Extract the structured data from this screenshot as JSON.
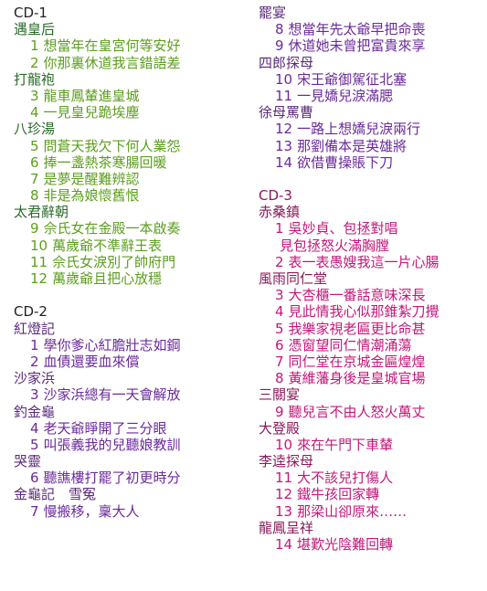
{
  "cd1": {
    "title": "CD-1",
    "sections": [
      {
        "name": "遇皇后",
        "tracks": [
          {
            "no": "1",
            "text": "想當年在皇宮何等安好"
          },
          {
            "no": "2",
            "text": "你那裏休道我言錯語差"
          }
        ]
      },
      {
        "name": "打龍袍",
        "tracks": [
          {
            "no": "3",
            "text": "龍車鳳輦進皇城"
          },
          {
            "no": "4",
            "text": "一見皇兒跪埃塵"
          }
        ]
      },
      {
        "name": "八珍湯",
        "tracks": [
          {
            "no": "5",
            "text": "問蒼天我欠下何人業怨"
          },
          {
            "no": "6",
            "text": "捧一盞熱茶寒腸回暖"
          },
          {
            "no": "7",
            "text": "是夢是醒難辨認"
          },
          {
            "no": "8",
            "text": "非是為娘懷舊恨"
          }
        ]
      },
      {
        "name": "太君辭朝",
        "tracks": [
          {
            "no": "9",
            "text": "佘氏女在金殿一本啟奏"
          },
          {
            "no": "10",
            "text": "萬歲爺不準辭王表"
          },
          {
            "no": "11",
            "text": "佘氏女淚別了帥府門"
          },
          {
            "no": "12",
            "text": "萬歲爺且把心放穩"
          }
        ]
      }
    ]
  },
  "cd2": {
    "title": "CD-2",
    "sections": [
      {
        "name": "紅燈記",
        "tracks": [
          {
            "no": "1",
            "text": "學你爹心紅膽壯志如鋼"
          },
          {
            "no": "2",
            "text": "血債還要血來償"
          }
        ]
      },
      {
        "name": "沙家浜",
        "tracks": [
          {
            "no": "3",
            "text": "沙家浜總有一天會解放"
          }
        ]
      },
      {
        "name": "釣金龜",
        "tracks": [
          {
            "no": "4",
            "text": "老天爺睜開了三分眼"
          },
          {
            "no": "5",
            "text": "叫張義我的兒聽娘教訓"
          }
        ]
      },
      {
        "name": "哭靈",
        "tracks": [
          {
            "no": "6",
            "text": "聽譙樓打罷了初更時分"
          }
        ]
      },
      {
        "name": "金龜記　雪冤",
        "tracks": [
          {
            "no": "7",
            "text": "慢搬移，稟大人"
          }
        ]
      },
      {
        "name": "罷宴",
        "tracks": [
          {
            "no": "8",
            "text": "想當年先太爺早把命喪"
          },
          {
            "no": "9",
            "text": "休道她未曾把富貴來享"
          }
        ]
      },
      {
        "name": "四郎探母",
        "tracks": [
          {
            "no": "10",
            "text": "宋王爺御駕征北塞"
          },
          {
            "no": "11",
            "text": "一見嬌兒淚滿腮"
          }
        ]
      },
      {
        "name": "徐母罵曹",
        "tracks": [
          {
            "no": "12",
            "text": "一路上想嬌兒淚兩行"
          },
          {
            "no": "13",
            "text": "那劉備本是英雄將"
          },
          {
            "no": "14",
            "text": "欲借曹操賬下刀"
          }
        ]
      }
    ]
  },
  "cd3": {
    "title": "CD-3",
    "sections": [
      {
        "name": "赤桑鎮",
        "tracks": [
          {
            "no": "1",
            "text": "吳妙貞、包拯對唱",
            "cont": "見包拯怒火滿胸膛"
          },
          {
            "no": "2",
            "text": "表一表愚嫂我這一片心腸"
          }
        ]
      },
      {
        "name": "風雨同仁堂",
        "tracks": [
          {
            "no": "3",
            "text": "大杏櫃一番話意味深長"
          },
          {
            "no": "4",
            "text": "見此情我心似那錐紮刀攪"
          },
          {
            "no": "5",
            "text": "我樂家視老匾更比命甚"
          },
          {
            "no": "6",
            "text": "憑窗望同仁情潮涌蕩"
          },
          {
            "no": "7",
            "text": "同仁堂在京城金匾煌煌"
          },
          {
            "no": "8",
            "text": "黃維藩身後是皇城官場"
          }
        ]
      },
      {
        "name": "三關宴",
        "tracks": [
          {
            "no": "9",
            "text": "聽兒言不由人怒火萬丈"
          }
        ]
      },
      {
        "name": "大登殿",
        "tracks": [
          {
            "no": "10",
            "text": "來在午門下車輦"
          }
        ]
      },
      {
        "name": "李逵探母",
        "tracks": [
          {
            "no": "11",
            "text": "大不該兒打傷人"
          },
          {
            "no": "12",
            "text": "鐵牛孩回家轉"
          },
          {
            "no": "13",
            "text": "那梁山卻原來……"
          }
        ]
      },
      {
        "name": "龍鳳呈祥",
        "tracks": [
          {
            "no": "14",
            "text": "堪歎光陰難回轉"
          }
        ]
      }
    ]
  }
}
